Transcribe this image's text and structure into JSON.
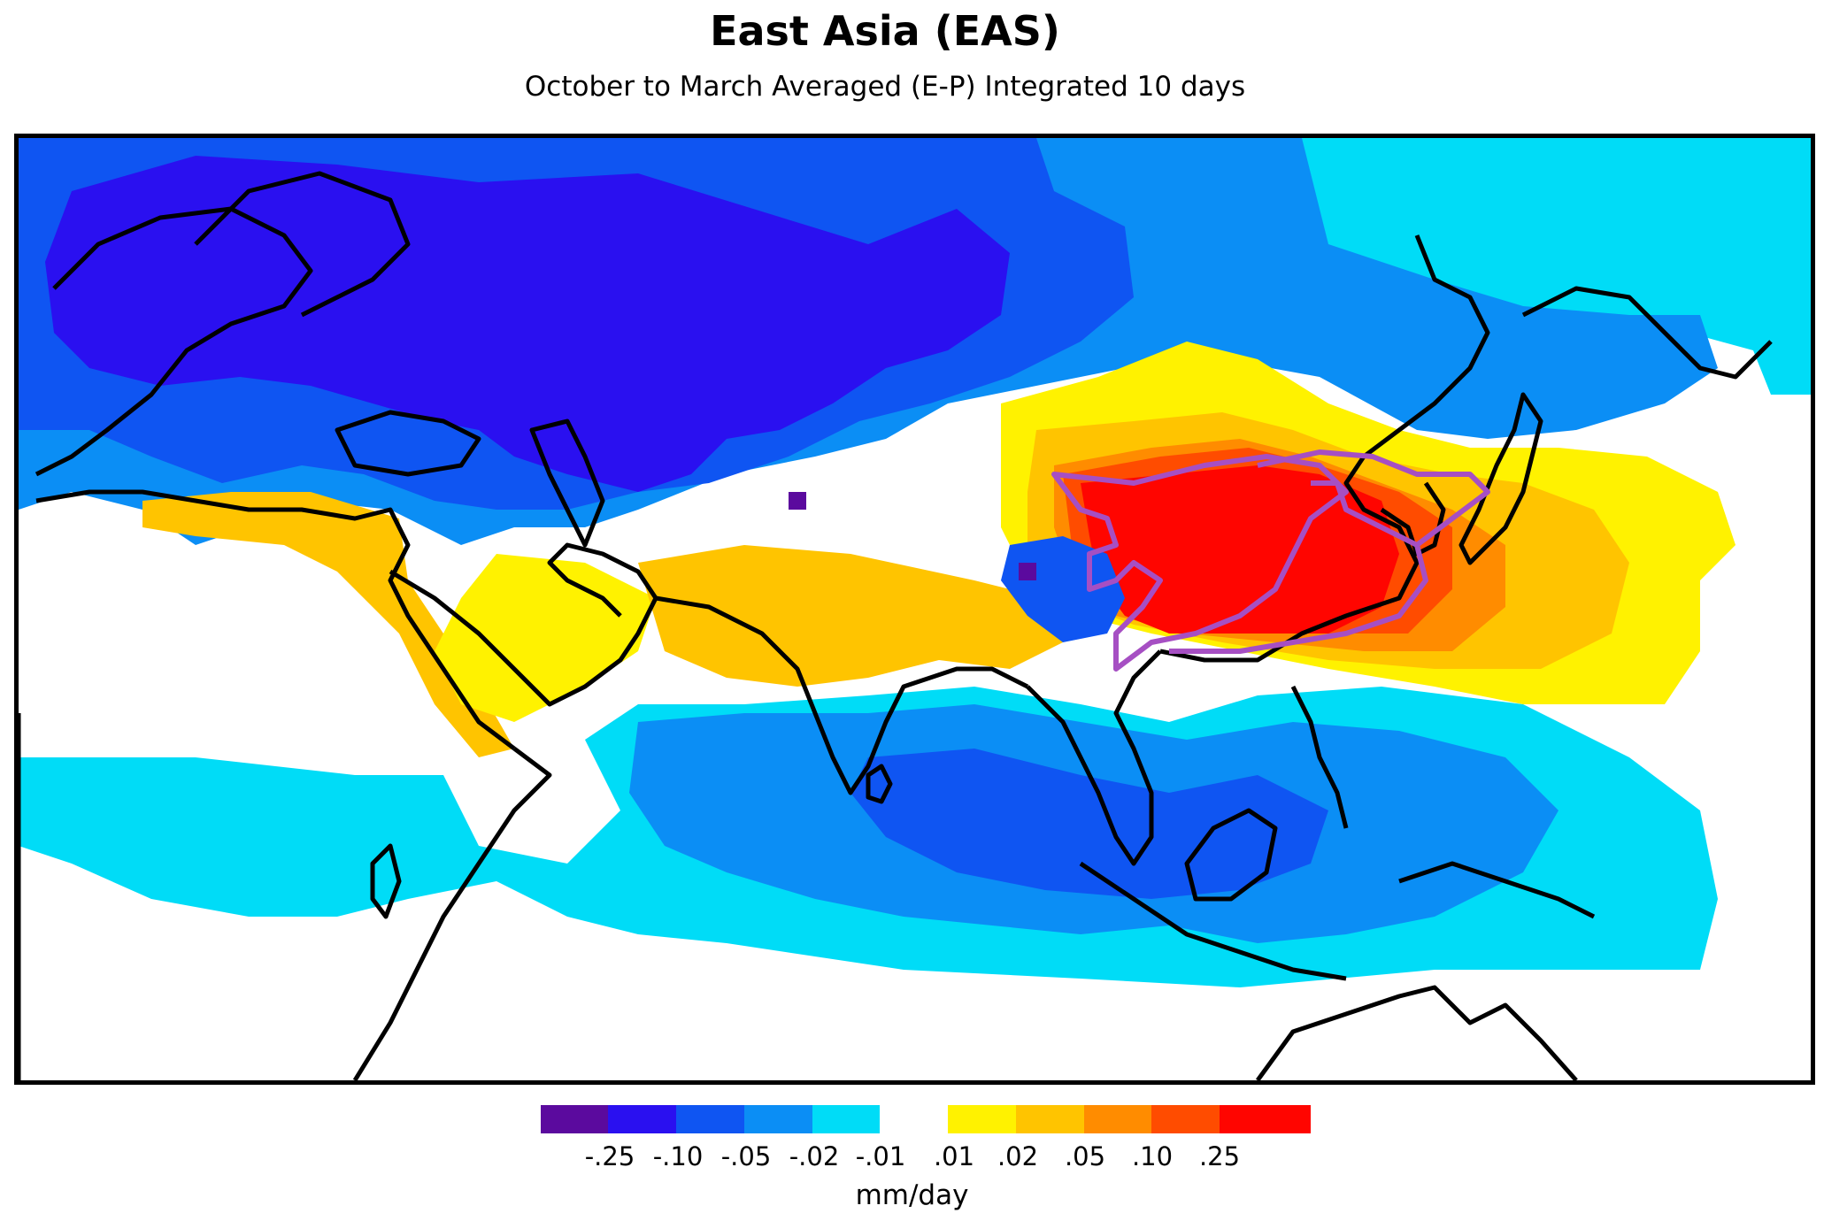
{
  "title": "East Asia (EAS)",
  "subtitle": "October to March Averaged (E-P) Integrated 10 days",
  "legend": {
    "units": "mm/day",
    "bins": [
      {
        "color": "#5b0a9e"
      },
      {
        "color": "#2a10f0"
      },
      {
        "color": "#0f55f2"
      },
      {
        "color": "#0b8ef5"
      },
      {
        "color": "#00dcf7"
      },
      {
        "color": "#ffffff"
      },
      {
        "color": "#fff200"
      },
      {
        "color": "#ffc400"
      },
      {
        "color": "#ff8c00"
      },
      {
        "color": "#ff4c00"
      },
      {
        "color": "#ff0500"
      }
    ],
    "tick_labels": [
      "-.25",
      "-.10",
      "-.05",
      "-.02",
      "-.01",
      ".01",
      ".02",
      ".05",
      ".10",
      ".25"
    ]
  },
  "source_region_outline_color": "#a64fc3",
  "coastline_color": "#000000"
}
